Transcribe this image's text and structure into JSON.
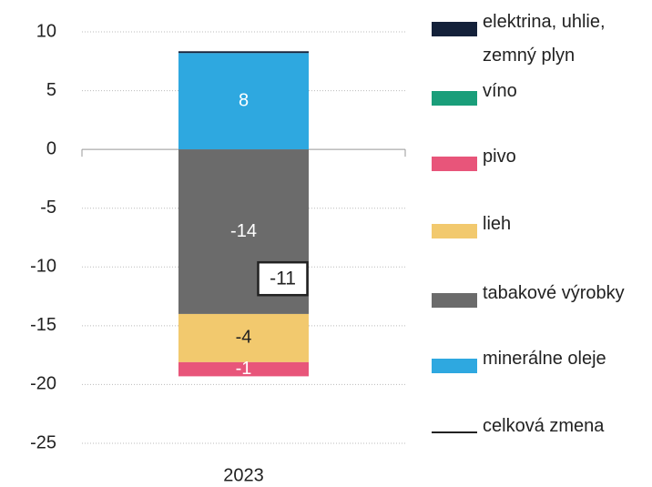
{
  "chart_data": {
    "type": "stacked_bar",
    "categories": [
      "2023"
    ],
    "series": [
      {
        "name": "elektrina, uhlie, zemný plyn",
        "color": "#14213a",
        "values": [
          0.15
        ]
      },
      {
        "name": "víno",
        "color": "#1a9e7a",
        "values": [
          0
        ]
      },
      {
        "name": "pivo",
        "color": "#e8557a",
        "values": [
          -1.2
        ],
        "value_labels": [
          "-1"
        ]
      },
      {
        "name": "lieh",
        "color": "#f2c96e",
        "values": [
          -4.1
        ],
        "value_labels": [
          "-4"
        ]
      },
      {
        "name": "tabakové výrobky",
        "color": "#6b6b6b",
        "values": [
          -14
        ],
        "value_labels": [
          "-14"
        ]
      },
      {
        "name": "minerálne oleje",
        "color": "#2ea8e0",
        "values": [
          8.2
        ],
        "value_labels": [
          "8"
        ]
      }
    ],
    "total": {
      "name": "celková zmena",
      "color": "#222222",
      "values": [
        -11
      ],
      "value_labels": [
        "-11"
      ]
    },
    "ylim": [
      -25,
      10
    ],
    "yticks": [
      -25,
      -20,
      -15,
      -10,
      -5,
      0,
      5,
      10
    ],
    "grid": true
  }
}
